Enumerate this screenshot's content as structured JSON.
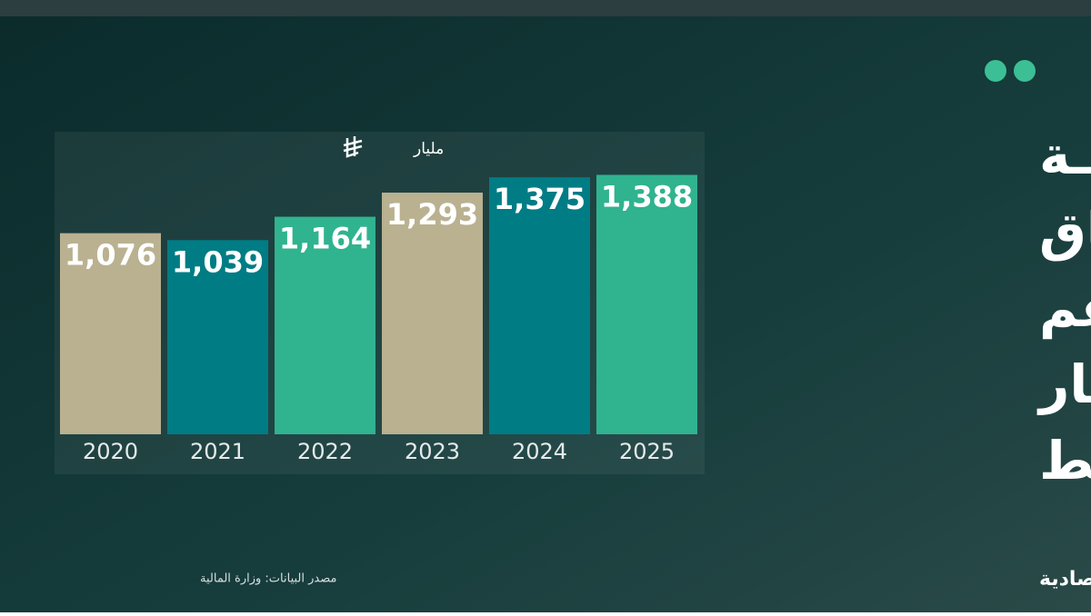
{
  "chart_data": {
    "type": "bar",
    "title_lines": [
      "السعوديـــــة",
      "تواصل الإنفاق",
      "لقياسي رغم",
      "تراجـــع أسعار",
      "النفــــــــط"
    ],
    "unit": "مليار",
    "categories": [
      "2020",
      "2021",
      "2022",
      "2023",
      "2024",
      "2025"
    ],
    "values": [
      1076,
      1039,
      1164,
      1293,
      1375,
      1388
    ],
    "value_labels": [
      "1,076",
      "1,039",
      "1,164",
      "1,293",
      "1,375",
      "1,388"
    ],
    "colors": [
      "#b9b190",
      "#007c85",
      "#30b38f",
      "#b9b190",
      "#007c85",
      "#30b38f"
    ],
    "ylim": [
      0,
      1400
    ],
    "source": "مصدر البيانات: وزارة المالية",
    "logo": "الاقتصادية"
  }
}
